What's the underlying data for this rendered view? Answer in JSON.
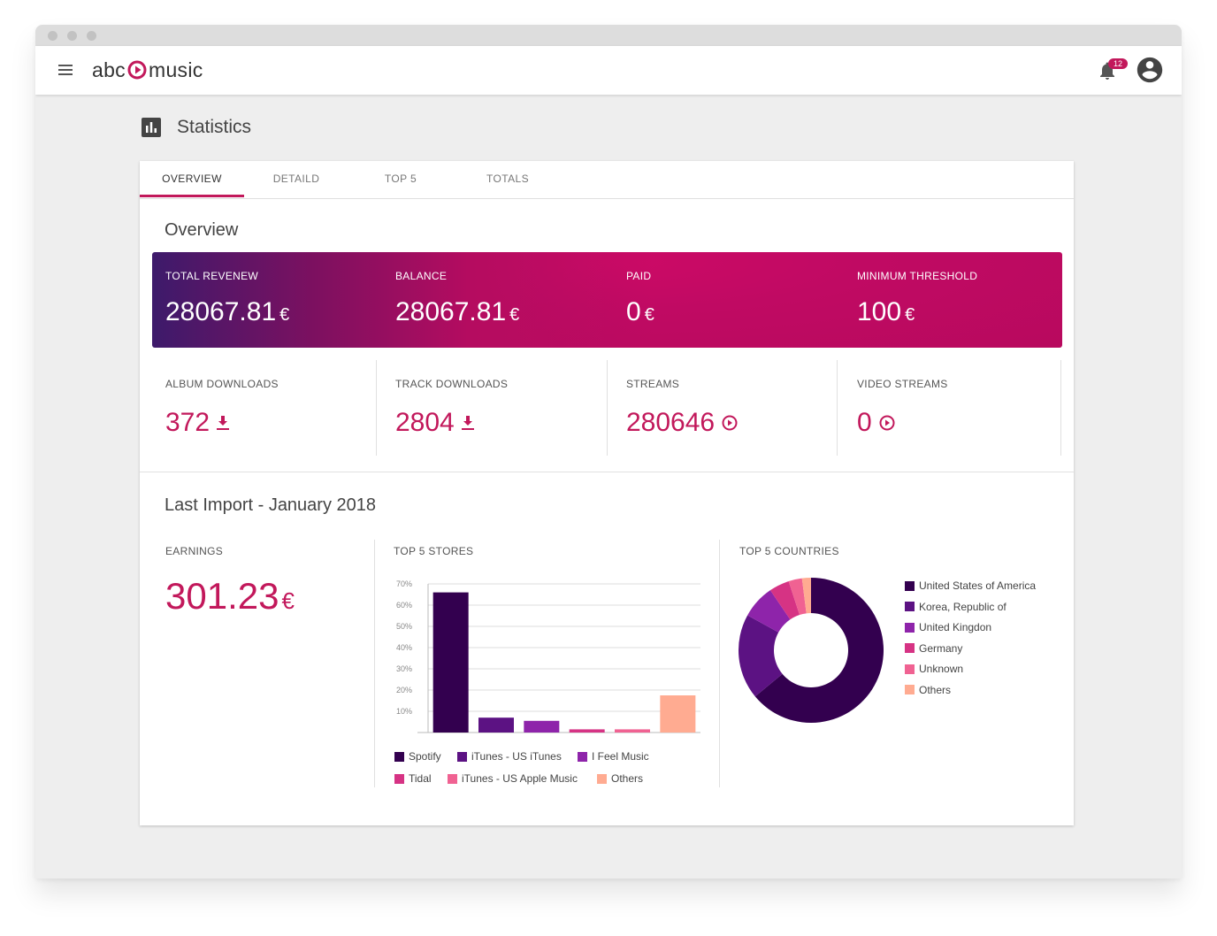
{
  "app": {
    "brand_left": "abc",
    "brand_right": "music",
    "notifications": "12"
  },
  "page": {
    "title": "Statistics"
  },
  "tabs": [
    {
      "label": "OVERVIEW"
    },
    {
      "label": "DETAILD"
    },
    {
      "label": "TOP 5"
    },
    {
      "label": "TOTALS"
    }
  ],
  "overview": {
    "title": "Overview",
    "money": [
      {
        "label": "TOTAL REVENEW",
        "value": "28067.81",
        "currency": "€"
      },
      {
        "label": "BALANCE",
        "value": "28067.81",
        "currency": "€"
      },
      {
        "label": "PAID",
        "value": "0",
        "currency": "€"
      },
      {
        "label": "MINIMUM  THRESHOLD",
        "value": "100",
        "currency": "€"
      }
    ],
    "counts": [
      {
        "label": "ALBUM DOWNLOADS",
        "value": "372",
        "icon": "download-icon"
      },
      {
        "label": "TRACK DOWNLOADS",
        "value": "2804",
        "icon": "download-icon"
      },
      {
        "label": "STREAMS",
        "value": "280646",
        "icon": "play-circle-icon"
      },
      {
        "label": "VIDEO STREAMS",
        "value": "0",
        "icon": "play-circle-icon"
      }
    ]
  },
  "last_import": {
    "title": "Last Import - January 2018",
    "earnings_label": "EARNINGS",
    "earnings_value": "301.23",
    "earnings_currency": "€",
    "stores_label": "TOP 5 STORES",
    "countries_label": "TOP 5 COUNTRIES"
  },
  "colors": {
    "accent": "#c2185b",
    "series": [
      "#33004f",
      "#5c1283",
      "#8e24aa",
      "#d63384",
      "#f06292",
      "#ffab91"
    ]
  },
  "chart_data": [
    {
      "type": "bar",
      "categories": [
        "Spotify",
        "iTunes - US iTunes",
        "I Feel Music",
        "Tidal",
        "iTunes - US Apple Music",
        "Others"
      ],
      "values": [
        66,
        7,
        5.5,
        1.5,
        1.5,
        17.5
      ],
      "ylim": [
        0,
        70
      ],
      "yticks": [
        "10%",
        "20%",
        "30%",
        "40%",
        "50%",
        "60%",
        "70%"
      ],
      "grid": true,
      "legend": "bottom"
    },
    {
      "type": "pie",
      "categories": [
        "United States of America",
        "Korea, Republic of",
        "United Kingdon",
        "Germany",
        "Unknown",
        "Others"
      ],
      "values": [
        64,
        19,
        7.5,
        4.5,
        3,
        2
      ],
      "legend": "right"
    }
  ]
}
